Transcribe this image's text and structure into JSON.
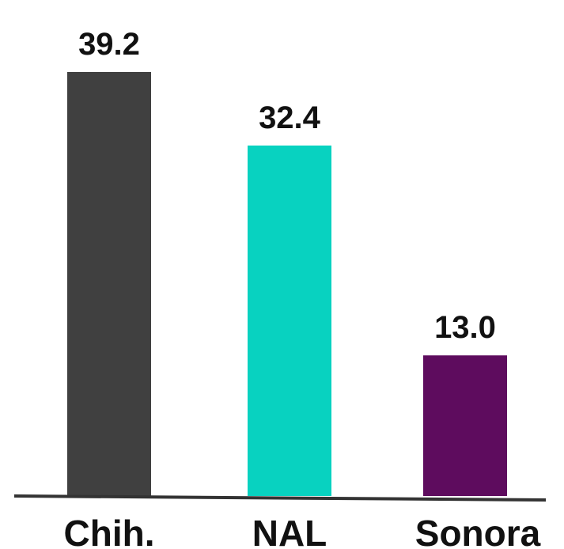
{
  "chart_data": {
    "type": "bar",
    "categories": [
      "Chih.",
      "NAL",
      "Sonora"
    ],
    "values": [
      39.2,
      32.4,
      13.0
    ],
    "value_labels": [
      "39.2",
      "32.4",
      "13.0"
    ],
    "colors": [
      "#404040",
      "#08d2c0",
      "#5e0c5e"
    ],
    "title": "",
    "xlabel": "",
    "ylabel": "",
    "ylim": [
      0,
      39.2
    ],
    "grid": false,
    "legend": "none"
  }
}
